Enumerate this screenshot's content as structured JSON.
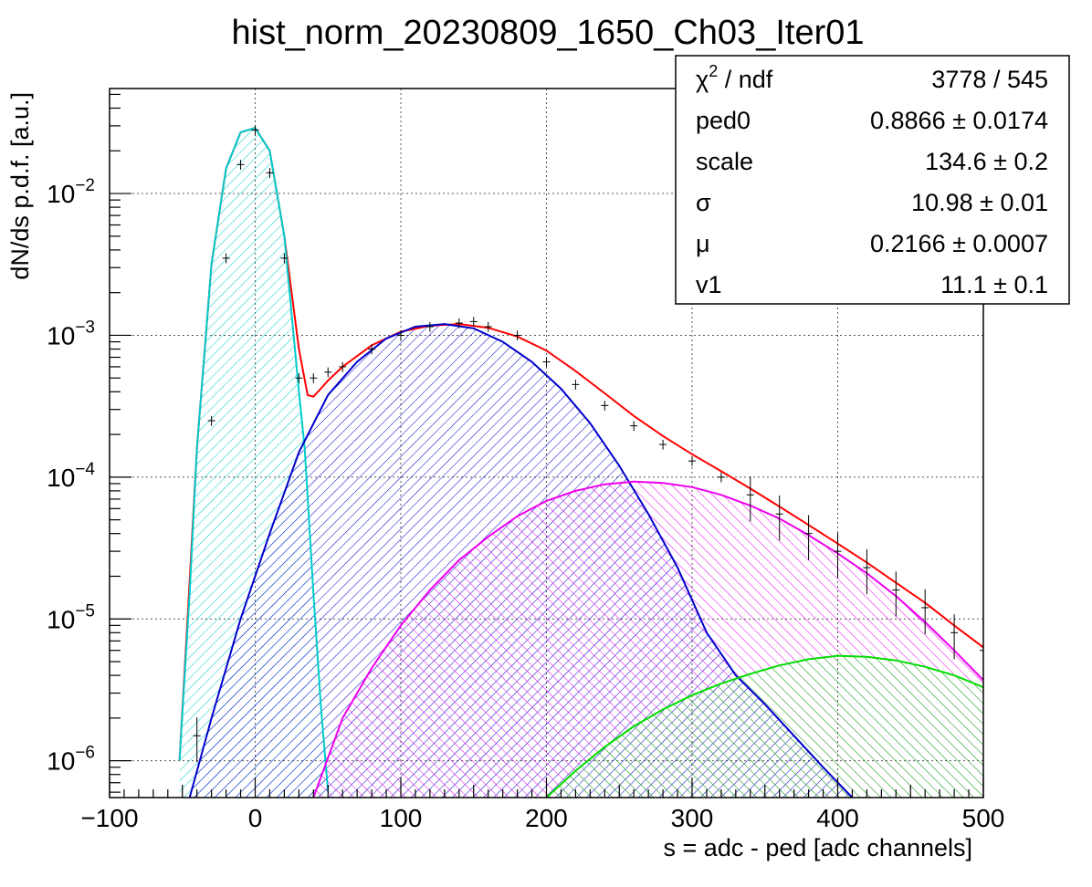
{
  "chart_data": {
    "type": "line",
    "title": "hist_norm_20230809_1650_Ch03_Iter01",
    "xlabel": "s = adc - ped [adc channels]",
    "ylabel": "dN/ds p.d.f. [a.u.]",
    "xlim": [
      -100,
      500
    ],
    "ylim": [
      5.5e-07,
      0.055
    ],
    "y_scale": "log",
    "grid": true,
    "x_ticks": [
      -100,
      0,
      100,
      200,
      300,
      400,
      500
    ],
    "x_tick_labels": [
      "−100",
      "0",
      "100",
      "200",
      "300",
      "400",
      "500"
    ],
    "y_ticks": [
      1e-06,
      1e-05,
      0.0001,
      0.001,
      0.01
    ],
    "y_tick_labels": [
      {
        "base": "10",
        "exp": "−6"
      },
      {
        "base": "10",
        "exp": "−5"
      },
      {
        "base": "10",
        "exp": "−4"
      },
      {
        "base": "10",
        "exp": "−3"
      },
      {
        "base": "10",
        "exp": "−2"
      }
    ],
    "stats_box": {
      "rows": [
        {
          "name_base": "χ",
          "name_sup": "2",
          "name_rest": " / ndf",
          "value": "3778 / 545"
        },
        {
          "name_base": "ped0",
          "name_sup": "",
          "name_rest": "",
          "value": "0.8866 ± 0.0174"
        },
        {
          "name_base": "scale",
          "name_sup": "",
          "name_rest": "",
          "value": "134.6 ± 0.2"
        },
        {
          "name_base": "σ",
          "name_sup": "",
          "name_rest": "",
          "value": "10.98 ± 0.01"
        },
        {
          "name_base": "μ",
          "name_sup": "",
          "name_rest": "",
          "value": "0.2166 ± 0.0007"
        },
        {
          "name_base": "v1",
          "name_sup": "",
          "name_rest": "",
          "value": "11.1 ± 0.1"
        }
      ]
    },
    "series": [
      {
        "role": "data",
        "color": "#000000",
        "x": [
          -40,
          -30,
          -20,
          -10,
          0,
          10,
          20,
          30,
          40,
          50,
          60,
          80,
          100,
          120,
          140,
          150,
          160,
          180,
          200,
          220,
          240,
          260,
          280,
          300,
          320,
          340,
          360,
          380,
          400,
          420,
          440,
          460,
          480,
          500
        ],
        "y": [
          1.5e-06,
          0.00025,
          0.0035,
          0.016,
          0.028,
          0.014,
          0.0035,
          0.0005,
          0.0005,
          0.00055,
          0.0006,
          0.0008,
          0.001,
          0.00115,
          0.00122,
          0.00125,
          0.00115,
          0.001,
          0.00065,
          0.00045,
          0.00032,
          0.00023,
          0.00017,
          0.00013,
          0.0001,
          7.5e-05,
          5.5e-05,
          4e-05,
          3e-05,
          2.3e-05,
          1.6e-05,
          1.2e-05,
          8e-06,
          6e-06
        ]
      },
      {
        "role": "total fit",
        "color": "#ff0000",
        "x": [
          -52,
          -46,
          -40,
          -30,
          -20,
          -10,
          0,
          10,
          20,
          30,
          36,
          40,
          45,
          50,
          60,
          80,
          100,
          120,
          140,
          160,
          180,
          200,
          220,
          240,
          260,
          280,
          300,
          320,
          340,
          360,
          380,
          400,
          420,
          440,
          460,
          480,
          500
        ],
        "y": [
          1e-06,
          1.2e-05,
          0.00016,
          0.0032,
          0.015,
          0.027,
          0.029,
          0.02,
          0.005,
          0.0008,
          0.00038,
          0.00037,
          0.00042,
          0.00048,
          0.0006,
          0.00085,
          0.00106,
          0.00117,
          0.0012,
          0.00113,
          0.00098,
          0.00078,
          0.00056,
          0.00039,
          0.00027,
          0.000195,
          0.000145,
          0.00011,
          8.3e-05,
          6.2e-05,
          4.6e-05,
          3.4e-05,
          2.5e-05,
          1.8e-05,
          1.3e-05,
          9e-06,
          6.3e-06
        ]
      },
      {
        "role": "pedestal component",
        "color": "#00cccc",
        "fill": "hatch",
        "x": [
          -52,
          -45,
          -40,
          -30,
          -20,
          -10,
          0,
          10,
          20,
          30,
          34,
          40,
          45,
          50
        ],
        "y": [
          1e-06,
          1.5e-05,
          0.00016,
          0.0032,
          0.015,
          0.027,
          0.029,
          0.02,
          0.005,
          0.0004,
          0.00016,
          1.5e-05,
          2.5e-06,
          6e-07
        ]
      },
      {
        "role": "1 p.e. component",
        "color": "#0000cc",
        "fill": "hatch",
        "x": [
          -45,
          -30,
          -10,
          10,
          30,
          50,
          70,
          90,
          110,
          130,
          150,
          170,
          190,
          210,
          230,
          250,
          270,
          290,
          310,
          330,
          350,
          370,
          390,
          410
        ],
        "y": [
          5.5e-07,
          2e-06,
          1e-05,
          4e-05,
          0.00015,
          0.00038,
          0.00065,
          0.00095,
          0.00115,
          0.0012,
          0.00112,
          0.0009,
          0.00065,
          0.00042,
          0.00024,
          0.00012,
          5.5e-05,
          2.3e-05,
          8e-06,
          4e-06,
          2.5e-06,
          1.5e-06,
          9e-07,
          5.5e-07
        ]
      },
      {
        "role": "2 p.e. component",
        "color": "#ee00ee",
        "fill": "hatch",
        "x": [
          40,
          60,
          80,
          100,
          120,
          140,
          160,
          180,
          200,
          220,
          240,
          260,
          280,
          300,
          320,
          340,
          360,
          380,
          400,
          420,
          440,
          460,
          480,
          500
        ],
        "y": [
          5.5e-07,
          2e-06,
          4.5e-06,
          9e-06,
          1.6e-05,
          2.6e-05,
          3.8e-05,
          5.3e-05,
          6.8e-05,
          8e-05,
          8.9e-05,
          9.3e-05,
          9.1e-05,
          8.5e-05,
          7.5e-05,
          6.3e-05,
          5.1e-05,
          3.9e-05,
          2.9e-05,
          2.1e-05,
          1.45e-05,
          9.5e-06,
          6e-06,
          3.7e-06
        ]
      },
      {
        "role": "3 p.e. component",
        "color": "#00dd00",
        "fill": "hatch",
        "x": [
          200,
          220,
          240,
          260,
          280,
          300,
          320,
          340,
          360,
          380,
          400,
          420,
          440,
          460,
          480,
          500
        ],
        "y": [
          5.5e-07,
          8.5e-07,
          1.25e-06,
          1.75e-06,
          2.3e-06,
          2.9e-06,
          3.5e-06,
          4.1e-06,
          4.7e-06,
          5.2e-06,
          5.5e-06,
          5.4e-06,
          5.1e-06,
          4.6e-06,
          4e-06,
          3.3e-06
        ]
      }
    ]
  }
}
